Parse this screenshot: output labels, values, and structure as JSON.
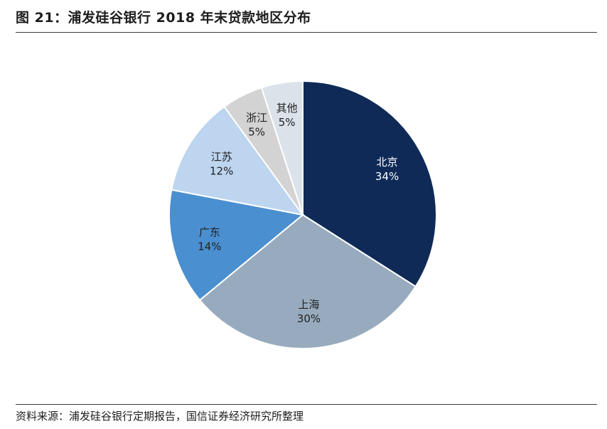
{
  "header": {
    "title": "图 21：浦发硅谷银行 2018 年末贷款地区分布"
  },
  "footer": {
    "source": "资料来源：浦发硅谷银行定期报告，国信证券经济研究所整理"
  },
  "chart_data": {
    "type": "pie",
    "title": "图 21：浦发硅谷银行 2018 年末贷款地区分布",
    "labels": [
      "北京",
      "上海",
      "广东",
      "江苏",
      "浙江",
      "其他"
    ],
    "values": [
      34,
      30,
      14,
      12,
      5,
      5
    ],
    "value_labels": [
      "34%",
      "30%",
      "14%",
      "12%",
      "5%",
      "5%"
    ],
    "colors": [
      "#0f2a57",
      "#98abbe",
      "#4a8fd0",
      "#bdd5ef",
      "#d3d3d3",
      "#dbe2ea"
    ],
    "label_colors": [
      "#ffffff",
      "#222222",
      "#222222",
      "#222222",
      "#222222",
      "#222222"
    ],
    "start": "12 o'clock",
    "direction": "clockwise",
    "legend": "none"
  }
}
